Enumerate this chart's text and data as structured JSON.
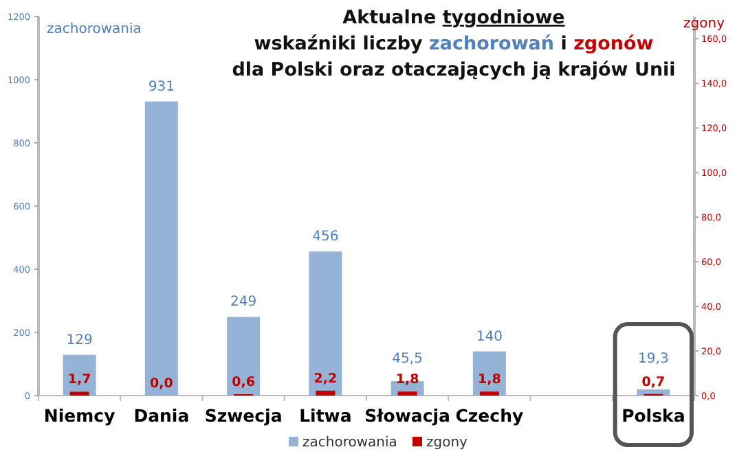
{
  "chart_data": {
    "type": "bar",
    "title": "Aktualne tygodniowe\nwskaźniki liczby zachorowań i zgonów\ndla Polski oraz otaczających ją krajów Unii",
    "ylabel": "zachorowania",
    "y2label": "zgony",
    "categories": [
      "Niemcy",
      "Dania",
      "Szwecja",
      "Litwa",
      "Słowacja",
      "Czechy",
      null,
      "Polska"
    ],
    "series": [
      {
        "name": "zachorowania",
        "color": "#95b3d7",
        "values": [
          129,
          931,
          249,
          456,
          45.5,
          140,
          null,
          19.3
        ],
        "value_labels": [
          "129",
          "931",
          "249",
          "456",
          "45,5",
          "140",
          null,
          "19,3"
        ]
      },
      {
        "name": "zgony",
        "color": "#c00000",
        "axis": "y2",
        "values": [
          1.7,
          0.0,
          0.6,
          2.2,
          1.8,
          1.8,
          null,
          0.7
        ],
        "value_labels": [
          "1,7",
          "0,0",
          "0,6",
          "2,2",
          "1,8",
          "1,8",
          null,
          "0,7"
        ]
      }
    ],
    "ylim": [
      0,
      1200
    ],
    "yticks": [
      0,
      200,
      400,
      600,
      800,
      1000,
      1200
    ],
    "y2lim": [
      0,
      170
    ],
    "y2ticks": [
      {
        "value": 0,
        "label": "0,0"
      },
      {
        "value": 20,
        "label": "20,0"
      },
      {
        "value": 40,
        "label": "40,0"
      },
      {
        "value": 60,
        "label": "60,0"
      },
      {
        "value": 80,
        "label": "80,0"
      },
      {
        "value": 100,
        "label": "100,0"
      },
      {
        "value": 120,
        "label": "120,0"
      },
      {
        "value": 140,
        "label": "140,0"
      },
      {
        "value": 160,
        "label": "160,0"
      }
    ],
    "grid": false,
    "legend": "bottom"
  }
}
